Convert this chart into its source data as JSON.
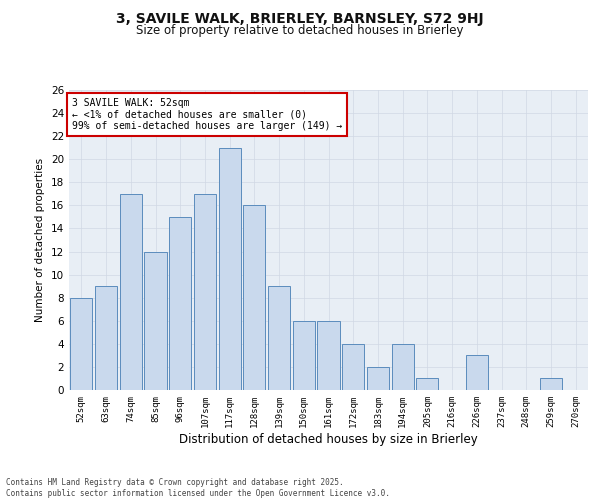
{
  "title_line1": "3, SAVILE WALK, BRIERLEY, BARNSLEY, S72 9HJ",
  "title_line2": "Size of property relative to detached houses in Brierley",
  "xlabel": "Distribution of detached houses by size in Brierley",
  "ylabel": "Number of detached properties",
  "categories": [
    "52sqm",
    "63sqm",
    "74sqm",
    "85sqm",
    "96sqm",
    "107sqm",
    "117sqm",
    "128sqm",
    "139sqm",
    "150sqm",
    "161sqm",
    "172sqm",
    "183sqm",
    "194sqm",
    "205sqm",
    "216sqm",
    "226sqm",
    "237sqm",
    "248sqm",
    "259sqm",
    "270sqm"
  ],
  "values": [
    8,
    9,
    17,
    12,
    15,
    17,
    21,
    16,
    9,
    6,
    6,
    4,
    2,
    4,
    1,
    0,
    3,
    0,
    0,
    1,
    0
  ],
  "bar_color": "#c9d9ed",
  "bar_edge_color": "#5b8cbd",
  "annotation_text": "3 SAVILE WALK: 52sqm\n← <1% of detached houses are smaller (0)\n99% of semi-detached houses are larger (149) →",
  "annotation_box_color": "#ffffff",
  "annotation_box_edge": "#cc0000",
  "ylim": [
    0,
    26
  ],
  "yticks": [
    0,
    2,
    4,
    6,
    8,
    10,
    12,
    14,
    16,
    18,
    20,
    22,
    24,
    26
  ],
  "grid_color": "#d0d8e4",
  "bg_color": "#e8eef5",
  "footer": "Contains HM Land Registry data © Crown copyright and database right 2025.\nContains public sector information licensed under the Open Government Licence v3.0."
}
